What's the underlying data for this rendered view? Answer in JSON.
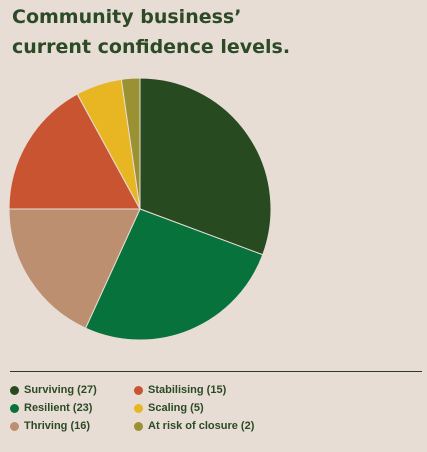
{
  "title": {
    "line1": "Community business’",
    "line2": "current confidence levels."
  },
  "chart_data": {
    "type": "pie",
    "title": "Community business’ current confidence levels.",
    "legend_position": "bottom",
    "slices": [
      {
        "label": "Surviving (27)",
        "value": 27,
        "color": "#284a20"
      },
      {
        "label": "Resilient (23)",
        "value": 23,
        "color": "#08723c"
      },
      {
        "label": "Thriving (16)",
        "value": 16,
        "color": "#bb8f6f"
      },
      {
        "label": "Stabilising (15)",
        "value": 15,
        "color": "#c95432"
      },
      {
        "label": "Scaling (5)",
        "value": 5,
        "color": "#e9b623"
      },
      {
        "label": "At risk of closure (2)",
        "value": 2,
        "color": "#9a9232"
      }
    ],
    "draw_order": [
      "Surviving (27)",
      "Resilient (23)",
      "Thriving (16)",
      "Stabilising (15)",
      "Scaling (5)",
      "At risk of closure (2)"
    ]
  },
  "legend": [
    {
      "label": "Surviving (27)",
      "color": "#284a20"
    },
    {
      "label": "Resilient (23)",
      "color": "#08723c"
    },
    {
      "label": "Thriving (16)",
      "color": "#bb8f6f"
    },
    {
      "label": "Stabilising (15)",
      "color": "#c95432"
    },
    {
      "label": "Scaling (5)",
      "color": "#e9b623"
    },
    {
      "label": "At risk of closure (2)",
      "color": "#9a9232"
    }
  ]
}
